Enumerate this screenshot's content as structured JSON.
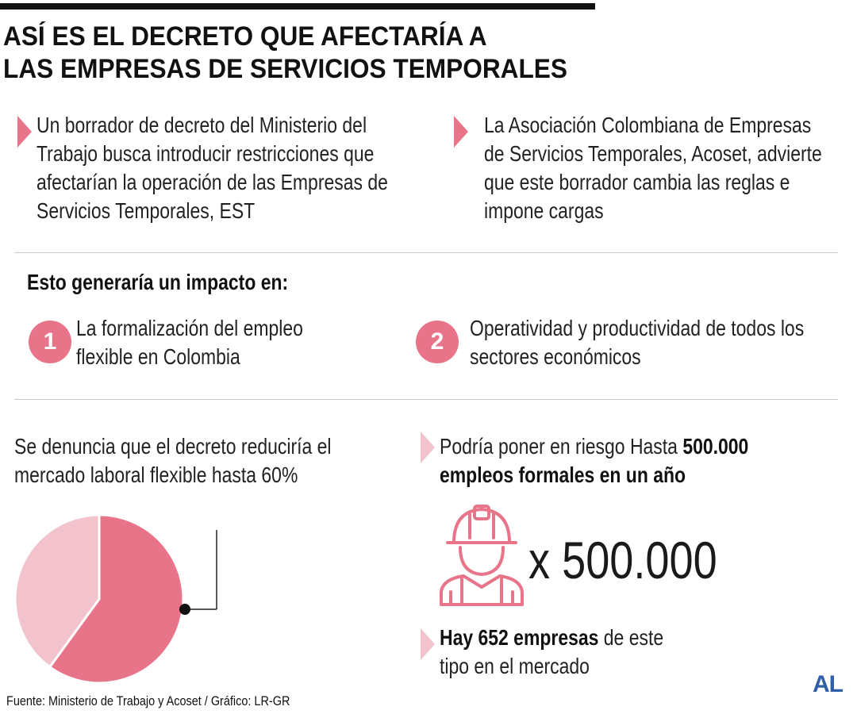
{
  "title": {
    "line1": "ASÍ ES EL DECRETO QUE AFECTARÍA A",
    "line2": "LAS EMPRESAS DE SERVICIOS TEMPORALES"
  },
  "intro": {
    "left": [
      "Un borrador de decreto del Ministerio del",
      "Trabajo busca introducir restricciones que",
      "afectarían la operación de las Empresas de",
      "Servicios Temporales, EST"
    ],
    "right": [
      "La Asociación Colombiana de Empresas",
      "de Servicios Temporales, Acoset, advierte",
      "que este borrador cambia las reglas e",
      "impone cargas"
    ]
  },
  "impact": {
    "heading": "Esto generaría un impacto en:",
    "items": [
      {
        "number": "1",
        "lines": [
          "La formalización del empleo",
          "flexible en Colombia"
        ]
      },
      {
        "number": "2",
        "lines": [
          "Operatividad y productividad de todos los",
          "sectores económicos"
        ]
      }
    ]
  },
  "market": {
    "lines": [
      "Se denuncia que el decreto reduciría el",
      "mercado laboral flexible hasta 60%"
    ]
  },
  "chart_data": {
    "type": "pie",
    "categories": [
      "",
      ""
    ],
    "values": [
      60,
      40
    ],
    "colors": [
      "#e8748a",
      "#f2c3cd"
    ],
    "title": ""
  },
  "risk": {
    "line1_plain": "Podría poner en riesgo Hasta ",
    "line1_bold": "500.000",
    "line2_bold": "empleos formales en un año",
    "icon": "construction-worker-icon",
    "multiplier": "x 500.000"
  },
  "companies": {
    "bold": "Hay 652 empresas",
    "plain1": " de este",
    "line2": "tipo en el mercado"
  },
  "source": "Fuente: Ministerio de Trabajo y Acoset / Gráfico: LR-GR",
  "logo": "AL",
  "colors": {
    "accent": "#e8748a",
    "accent_light": "#f2c3cd",
    "logo": "#2f5fa8"
  }
}
